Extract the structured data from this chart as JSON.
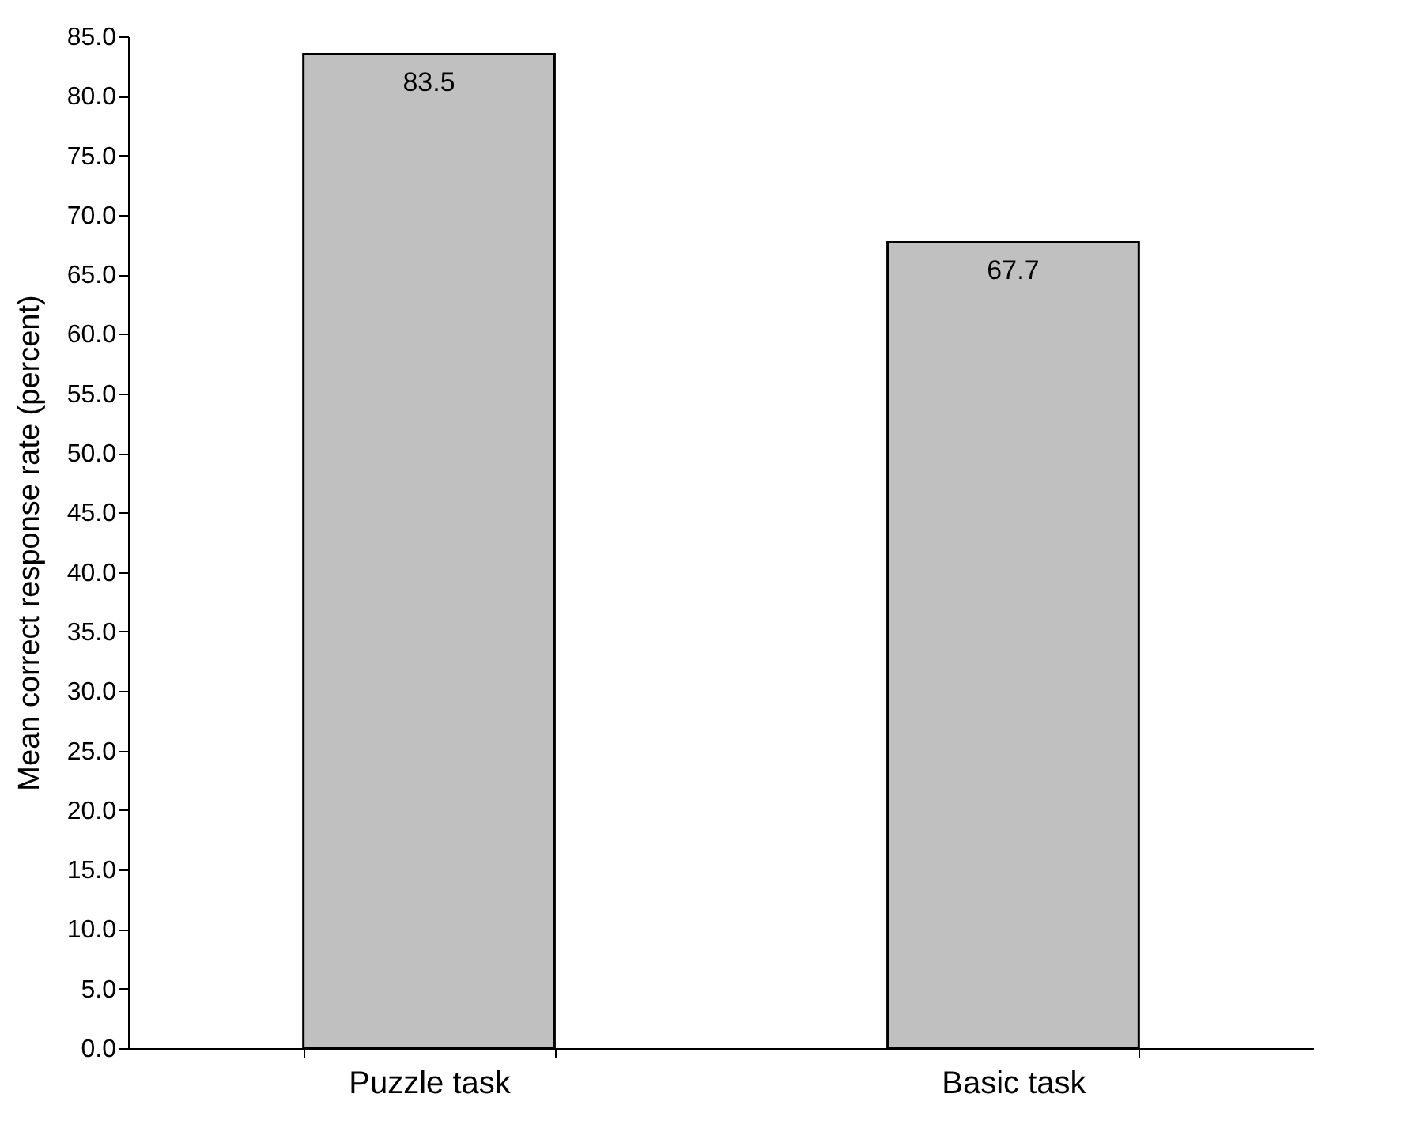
{
  "chart_data": {
    "type": "bar",
    "ylabel": "Mean correct response rate (percent)",
    "categories": [
      "Puzzle task",
      "Basic task"
    ],
    "values": [
      83.5,
      67.7
    ],
    "color": "#c0c0c0",
    "data_labels": true,
    "grid": false,
    "ylim": [
      0,
      85
    ],
    "yticks": [
      {
        "value": 0,
        "label": "0.0"
      },
      {
        "value": 5,
        "label": "5.0"
      },
      {
        "value": 10,
        "label": "10.0"
      },
      {
        "value": 15,
        "label": "15.0"
      },
      {
        "value": 20,
        "label": "20.0"
      },
      {
        "value": 25,
        "label": "25.0"
      },
      {
        "value": 30,
        "label": "30.0"
      },
      {
        "value": 35,
        "label": "35.0"
      },
      {
        "value": 40,
        "label": "40.0"
      },
      {
        "value": 45,
        "label": "45.0"
      },
      {
        "value": 50,
        "label": "50.0"
      },
      {
        "value": 55,
        "label": "55.0"
      },
      {
        "value": 60,
        "label": "60.0"
      },
      {
        "value": 65,
        "label": "65.0"
      },
      {
        "value": 70,
        "label": "70.0"
      },
      {
        "value": 75,
        "label": "75.0"
      },
      {
        "value": 80,
        "label": "80.0"
      },
      {
        "value": 85,
        "label": "85.0"
      }
    ]
  }
}
